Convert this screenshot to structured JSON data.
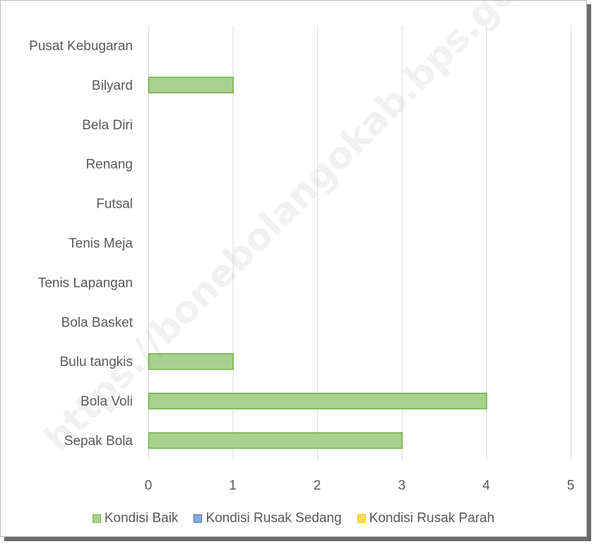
{
  "watermark": "https://bonebolangokab.bps.go.id",
  "chart_data": {
    "type": "bar",
    "orientation": "horizontal",
    "stacked": true,
    "categories": [
      "Sepak Bola",
      "Bola Voli",
      "Bulu tangkis",
      "Bola Basket",
      "Tenis Lapangan",
      "Tenis Meja",
      "Futsal",
      "Renang",
      "Bela Diri",
      "Bilyard",
      "Pusat Kebugaran"
    ],
    "series": [
      {
        "name": "Kondisi Baik",
        "values": [
          3,
          4,
          1,
          0,
          0,
          0,
          0,
          0,
          0,
          1,
          0
        ],
        "fill": "#a9d18e",
        "stroke": "#70ad47"
      },
      {
        "name": "Kondisi Rusak Sedang",
        "values": [
          0,
          0,
          0,
          0,
          0,
          0,
          0,
          0,
          0,
          0,
          0
        ],
        "fill": "#8faadc",
        "stroke": "#4472c4"
      },
      {
        "name": "Kondisi Rusak Parah",
        "values": [
          0,
          0,
          0,
          0,
          0,
          0,
          0,
          0,
          0,
          0,
          0
        ],
        "fill": "#ffd966",
        "stroke": "#ffc000"
      }
    ],
    "xlim": [
      0,
      5
    ],
    "xticks": [
      0,
      1,
      2,
      3,
      4,
      5
    ],
    "grid": true,
    "legend": "bottom",
    "title": "",
    "xlabel": "",
    "ylabel": ""
  }
}
